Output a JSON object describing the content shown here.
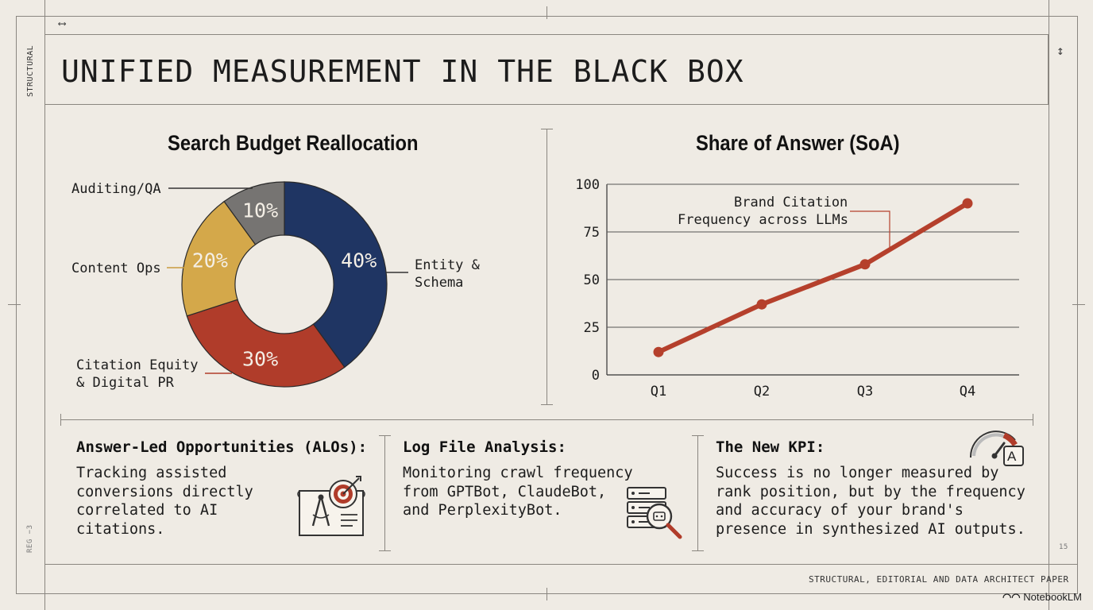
{
  "page": {
    "title": "UNIFIED MEASUREMENT IN THE BLACK BOX",
    "side_label": "STRUCTURAL",
    "side_label_bottom": "REG −3",
    "corner_mark_right": "15",
    "footer": "STRUCTURAL, EDITORIAL AND DATA ARCHITECT PAPER",
    "logo": "NotebookLM"
  },
  "colors": {
    "background": "#efebe4",
    "navy": "#1f3563",
    "red": "#b03c2a",
    "gold": "#d4a84a",
    "gray": "#767472",
    "line_red": "#b5402c"
  },
  "chart_data": [
    {
      "type": "pie",
      "title": "Search Budget Reallocation",
      "donut": true,
      "slices": [
        {
          "label": "Entity & Schema",
          "label_lines": [
            "Entity &",
            "Schema"
          ],
          "value": 40,
          "display": "40%",
          "color": "#1f3563"
        },
        {
          "label": "Citation Equity & Digital PR",
          "label_lines": [
            "Citation Equity",
            "& Digital PR"
          ],
          "value": 30,
          "display": "30%",
          "color": "#b03c2a"
        },
        {
          "label": "Content Ops",
          "label_lines": [
            "Content Ops"
          ],
          "value": 20,
          "display": "20%",
          "color": "#d4a84a"
        },
        {
          "label": "Auditing/QA",
          "label_lines": [
            "Auditing/QA"
          ],
          "value": 10,
          "display": "10%",
          "color": "#767472"
        }
      ]
    },
    {
      "type": "line",
      "title": "Share of Answer (SoA)",
      "categories": [
        "Q1",
        "Q2",
        "Q3",
        "Q4"
      ],
      "series": [
        {
          "name": "Brand Citation Frequency across LLMs",
          "values": [
            12,
            37,
            58,
            90
          ],
          "color": "#b5402c"
        }
      ],
      "annotation_lines": [
        "Brand Citation",
        "Frequency across LLMs"
      ],
      "ylim": [
        0,
        100
      ],
      "yticks": [
        0,
        25,
        50,
        75,
        100
      ],
      "grid": true
    }
  ],
  "panels": [
    {
      "heading": "Answer-Led Opportunities (ALOs):",
      "lines": [
        "Tracking assisted",
        "conversions directly",
        "correlated to AI",
        "citations."
      ],
      "icon": "target-blueprint-icon"
    },
    {
      "heading": "Log File Analysis:",
      "lines": [
        "Monitoring crawl frequency",
        "from GPTBot, ClaudeBot,",
        "and PerplexityBot."
      ],
      "icon": "server-search-icon"
    },
    {
      "heading": "The New KPI:",
      "lines": [
        "Success is no longer measured by",
        "rank position, but by the frequency",
        "and accuracy of your brand's",
        "presence in synthesized AI outputs."
      ],
      "icon": "gauge-icon",
      "icon_letter": "A"
    }
  ]
}
